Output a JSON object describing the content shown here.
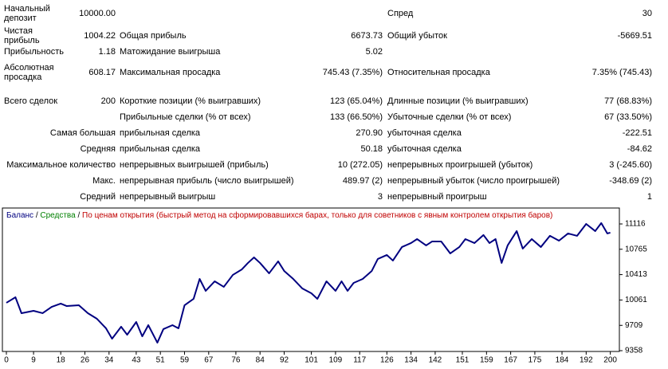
{
  "table": {
    "rows": [
      [
        "Начальный депозит",
        "10000.00",
        null,
        null,
        "Спред",
        "30"
      ],
      [
        "Чистая прибыль",
        "1004.22",
        "Общая прибыль",
        "6673.73",
        "Общий убыток",
        "-5669.51"
      ],
      [
        "Прибыльность",
        "1.18",
        "Матожидание выигрыша",
        "5.02",
        null,
        null
      ],
      [
        "Абсолютная просадка",
        "608.17",
        "Максимальная просадка",
        "745.43 (7.35%)",
        "Относительная просадка",
        "7.35% (745.43)"
      ],
      [
        "Всего сделок",
        "200",
        "Короткие позиции (% выигравших)",
        "123 (65.04%)",
        "Длинные позиции (% выигравших)",
        "77 (68.83%)"
      ],
      [
        null,
        null,
        "Прибыльные сделки (% от всех)",
        "133 (66.50%)",
        "Убыточные сделки (% от всех)",
        "67 (33.50%)"
      ],
      [
        "Самая большая",
        null,
        "прибыльная сделка",
        "270.90",
        "убыточная сделка",
        "-222.51"
      ],
      [
        "Средняя",
        null,
        "прибыльная сделка",
        "50.18",
        "убыточная сделка",
        "-84.62"
      ],
      [
        "Максимальное количество",
        null,
        "непрерывных выигрышей (прибыль)",
        "10 (272.05)",
        "непрерывных проигрышей (убыток)",
        "3 (-245.60)"
      ],
      [
        "Макс.",
        null,
        "непрерывная прибыль (число выигрышей)",
        "489.97 (2)",
        "непрерывный убыток (число проигрышей)",
        "-348.69 (2)"
      ],
      [
        "Средний",
        null,
        "непрерывный выигрыш",
        "3",
        "непрерывный проигрыш",
        "1"
      ]
    ]
  },
  "chart_data": {
    "type": "line",
    "title_parts": [
      {
        "text": "Баланс",
        "color": "#000080"
      },
      {
        "text": " / ",
        "color": "#000000"
      },
      {
        "text": "Средства",
        "color": "#008000"
      },
      {
        "text": " / ",
        "color": "#000000"
      },
      {
        "text": "По ценам открытия (быстрый метод на сформировавшихся барах, только для советников с явным контролем открытия баров)",
        "color": "#c00000"
      }
    ],
    "x": [
      0,
      3,
      5,
      9,
      12,
      15,
      18,
      20,
      24,
      27,
      30,
      33,
      35,
      38,
      40,
      43,
      45,
      47,
      50,
      52,
      55,
      57,
      59,
      62,
      64,
      66,
      69,
      72,
      75,
      78,
      80,
      82,
      84,
      87,
      90,
      92,
      95,
      98,
      101,
      103,
      106,
      109,
      111,
      113,
      115,
      118,
      121,
      123,
      126,
      128,
      131,
      134,
      136,
      139,
      141,
      144,
      147,
      150,
      152,
      155,
      158,
      160,
      162,
      164,
      166,
      169,
      171,
      174,
      177,
      180,
      183,
      186,
      189,
      192,
      195,
      197,
      199,
      200
    ],
    "series": [
      {
        "name": "Баланс",
        "color": "#000080",
        "values": [
          10022,
          10099,
          9878,
          9911,
          9878,
          9966,
          10011,
          9977,
          9988,
          9878,
          9800,
          9668,
          9524,
          9690,
          9579,
          9756,
          9557,
          9712,
          9469,
          9657,
          9712,
          9668,
          9988,
          10077,
          10353,
          10188,
          10320,
          10243,
          10409,
          10486,
          10575,
          10652,
          10575,
          10431,
          10597,
          10464,
          10353,
          10221,
          10154,
          10077,
          10320,
          10188,
          10320,
          10188,
          10298,
          10353,
          10464,
          10630,
          10685,
          10608,
          10796,
          10851,
          10906,
          10818,
          10873,
          10873,
          10707,
          10796,
          10906,
          10851,
          10962,
          10851,
          10906,
          10575,
          10818,
          11017,
          10774,
          10906,
          10796,
          10951,
          10884,
          10984,
          10951,
          11116,
          11017,
          11128,
          10984,
          10995
        ]
      }
    ],
    "xlim": [
      0,
      203
    ],
    "xticks": [
      0,
      9,
      18,
      26,
      34,
      43,
      51,
      59,
      67,
      76,
      84,
      92,
      101,
      109,
      117,
      126,
      134,
      142,
      151,
      159,
      167,
      175,
      184,
      192,
      200
    ],
    "ylim": [
      9358,
      11326
    ],
    "yticks": [
      9358,
      9709,
      10061,
      10413,
      10765,
      11116
    ],
    "grid": false
  }
}
